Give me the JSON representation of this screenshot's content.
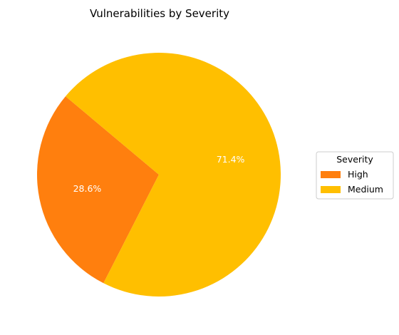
{
  "chart_data": {
    "type": "pie",
    "title": "Vulnerabilities by Severity",
    "slices": [
      {
        "label": "High",
        "value": 28.6,
        "pct_label": "28.6%",
        "color": "#ff7f0e"
      },
      {
        "label": "Medium",
        "value": 71.4,
        "pct_label": "71.4%",
        "color": "#ffbf00"
      }
    ],
    "legend": {
      "title": "Severity",
      "placement": "right"
    }
  }
}
